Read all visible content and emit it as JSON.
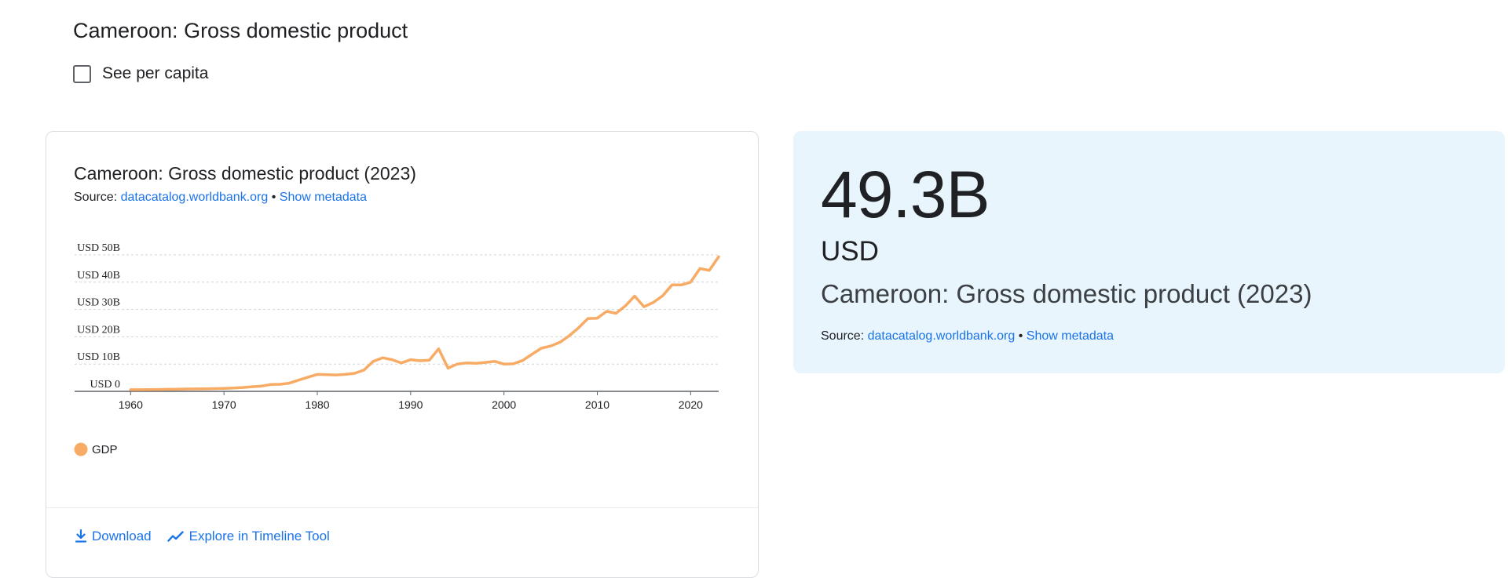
{
  "page": {
    "title": "Cameroon: Gross domestic product",
    "per_capita_label": "See per capita",
    "per_capita_checked": false
  },
  "chart_card": {
    "title": "Cameroon: Gross domestic product (2023)",
    "source_prefix": "Source:",
    "source_link": "datacatalog.worldbank.org",
    "separator": "•",
    "metadata_link": "Show metadata",
    "legend_label": "GDP",
    "download_label": "Download",
    "explore_label": "Explore in Timeline Tool"
  },
  "stat_card": {
    "value": "49.3B",
    "unit": "USD",
    "title": "Cameroon: Gross domestic product (2023)",
    "source_prefix": "Source:",
    "source_link": "datacatalog.worldbank.org",
    "separator": "•",
    "metadata_link": "Show metadata"
  },
  "colors": {
    "series": "#f7ab64",
    "link": "#1a73e8",
    "stat_bg": "#e8f5fd"
  },
  "chart_data": {
    "type": "line",
    "title": "Cameroon: Gross domestic product (2023)",
    "xlabel": "",
    "ylabel": "",
    "xlim": [
      1954,
      2023
    ],
    "ylim": [
      0,
      50
    ],
    "x_ticks": [
      1960,
      1970,
      1980,
      1990,
      2000,
      2010,
      2020
    ],
    "y_ticks": [
      {
        "value": 0,
        "label": "USD 0"
      },
      {
        "value": 10,
        "label": "USD 10B"
      },
      {
        "value": 20,
        "label": "USD 20B"
      },
      {
        "value": 30,
        "label": "USD 30B"
      },
      {
        "value": 40,
        "label": "USD 40B"
      },
      {
        "value": 50,
        "label": "USD 50B"
      }
    ],
    "grid": true,
    "legend_position": "bottom-left",
    "series": [
      {
        "name": "GDP",
        "color": "#f7ab64",
        "x": [
          1960,
          1961,
          1962,
          1963,
          1964,
          1965,
          1966,
          1967,
          1968,
          1969,
          1970,
          1971,
          1972,
          1973,
          1974,
          1975,
          1976,
          1977,
          1978,
          1979,
          1980,
          1981,
          1982,
          1983,
          1984,
          1985,
          1986,
          1987,
          1988,
          1989,
          1990,
          1991,
          1992,
          1993,
          1994,
          1995,
          1996,
          1997,
          1998,
          1999,
          2000,
          2001,
          2002,
          2003,
          2004,
          2005,
          2006,
          2007,
          2008,
          2009,
          2010,
          2011,
          2012,
          2013,
          2014,
          2015,
          2016,
          2017,
          2018,
          2019,
          2020,
          2021,
          2022,
          2023
        ],
        "values": [
          0.6,
          0.6,
          0.65,
          0.7,
          0.75,
          0.8,
          0.85,
          0.9,
          0.95,
          1.0,
          1.1,
          1.2,
          1.4,
          1.7,
          1.9,
          2.5,
          2.6,
          3.0,
          4.1,
          5.2,
          6.2,
          6.1,
          6.0,
          6.2,
          6.6,
          7.8,
          11.0,
          12.3,
          11.6,
          10.4,
          11.6,
          11.2,
          11.4,
          15.6,
          8.5,
          10.0,
          10.4,
          10.3,
          10.6,
          11.0,
          10.0,
          10.1,
          11.3,
          13.6,
          15.8,
          16.6,
          18.0,
          20.4,
          23.3,
          26.7,
          26.8,
          29.3,
          28.6,
          31.3,
          34.9,
          31.0,
          32.6,
          35.0,
          39.0,
          39.0,
          40.0,
          45.0,
          44.3,
          49.3
        ]
      }
    ]
  }
}
